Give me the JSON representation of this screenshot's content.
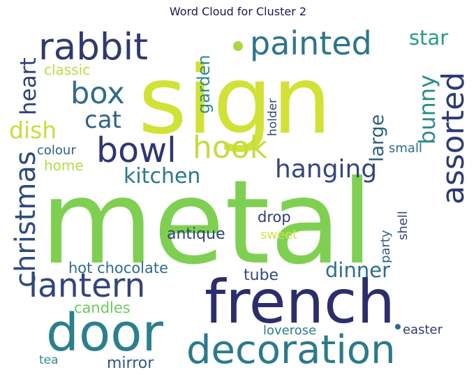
{
  "title": "Word Cloud for Cluster 2",
  "palette": {
    "navy": "#2c2f6e",
    "indigo": "#3b3f7c",
    "blue": "#34598b",
    "steel": "#3a6e8f",
    "teal": "#2a8a88",
    "teal2": "#2e9a8a",
    "green": "#44b878",
    "lime": "#8fd14f",
    "limegreen": "#84cf57",
    "yellow": "#c9e03a",
    "yellowlight": "#d8e84a",
    "chartreuse": "#b3dc3b"
  },
  "words": [
    {
      "text": "sign",
      "color": "#d2e136",
      "weight": 1.0
    },
    {
      "text": "metal",
      "color": "#7fd052",
      "weight": 0.98
    },
    {
      "text": "french",
      "color": "#2c2e6b",
      "weight": 0.7
    },
    {
      "text": "door",
      "color": "#2b7f8e",
      "weight": 0.62
    },
    {
      "text": "decoration",
      "color": "#2b7a8c",
      "weight": 0.55
    },
    {
      "text": "rabbit",
      "color": "#2f3a6e",
      "weight": 0.45
    },
    {
      "text": "painted",
      "color": "#2c748e",
      "weight": 0.42
    },
    {
      "text": "lantern",
      "color": "#31457c",
      "weight": 0.42
    },
    {
      "text": "christmas",
      "color": "#2e4b7c",
      "weight": 0.4
    },
    {
      "text": "bowl",
      "color": "#2d3672",
      "weight": 0.38
    },
    {
      "text": "box",
      "color": "#336b8d",
      "weight": 0.35
    },
    {
      "text": "hook",
      "color": "#c0de3e",
      "weight": 0.35
    },
    {
      "text": "assorted",
      "color": "#2b3b74",
      "weight": 0.35
    },
    {
      "text": "hanging",
      "color": "#34457e",
      "weight": 0.3
    },
    {
      "text": "dinner",
      "color": "#2b6f8e",
      "weight": 0.26
    },
    {
      "text": "bunny",
      "color": "#2a8c8a",
      "weight": 0.26
    },
    {
      "text": "kitchen",
      "color": "#2a798d",
      "weight": 0.24
    },
    {
      "text": "dish",
      "color": "#c7dd3b",
      "weight": 0.24
    },
    {
      "text": "heart",
      "color": "#2f3f76",
      "weight": 0.24
    },
    {
      "text": "cat",
      "color": "#2e5f8a",
      "weight": 0.24
    },
    {
      "text": "star",
      "color": "#2b9a86",
      "weight": 0.22
    },
    {
      "text": "large",
      "color": "#2c617f",
      "weight": 0.22
    },
    {
      "text": "garden",
      "color": "#2f8c8a",
      "weight": 0.2
    },
    {
      "text": "candles",
      "color": "#6ec95e",
      "weight": 0.17
    },
    {
      "text": "tube",
      "color": "#2f4a7e",
      "weight": 0.17
    },
    {
      "text": "mirror",
      "color": "#2c5688",
      "weight": 0.17
    },
    {
      "text": "antique",
      "color": "#333f78",
      "weight": 0.16
    },
    {
      "text": "hot chocolate",
      "color": "#2f6c8c",
      "weight": 0.16
    },
    {
      "text": "drop",
      "color": "#2f3d76",
      "weight": 0.16
    },
    {
      "text": "classic",
      "color": "#b9dc40",
      "weight": 0.15
    },
    {
      "text": "home",
      "color": "#b2dc48",
      "weight": 0.15
    },
    {
      "text": "shell",
      "color": "#34427a",
      "weight": 0.15
    },
    {
      "text": "party",
      "color": "#2d5f86",
      "weight": 0.14
    },
    {
      "text": "sweet",
      "color": "#d4e347",
      "weight": 0.14
    },
    {
      "text": "colour",
      "color": "#2f5d88",
      "weight": 0.13
    },
    {
      "text": "small",
      "color": "#2f6c8c",
      "weight": 0.13
    },
    {
      "text": "holder",
      "color": "#2c4a7c",
      "weight": 0.13
    },
    {
      "text": "loverose",
      "color": "#2f7c8c",
      "weight": 0.13
    },
    {
      "text": "easter",
      "color": "#2f3a70",
      "weight": 0.13
    },
    {
      "text": "tea",
      "color": "#2c8e89",
      "weight": 0.12
    }
  ],
  "dots": [
    {
      "color": "#a9d93f"
    },
    {
      "color": "#2b6b8c"
    }
  ]
}
